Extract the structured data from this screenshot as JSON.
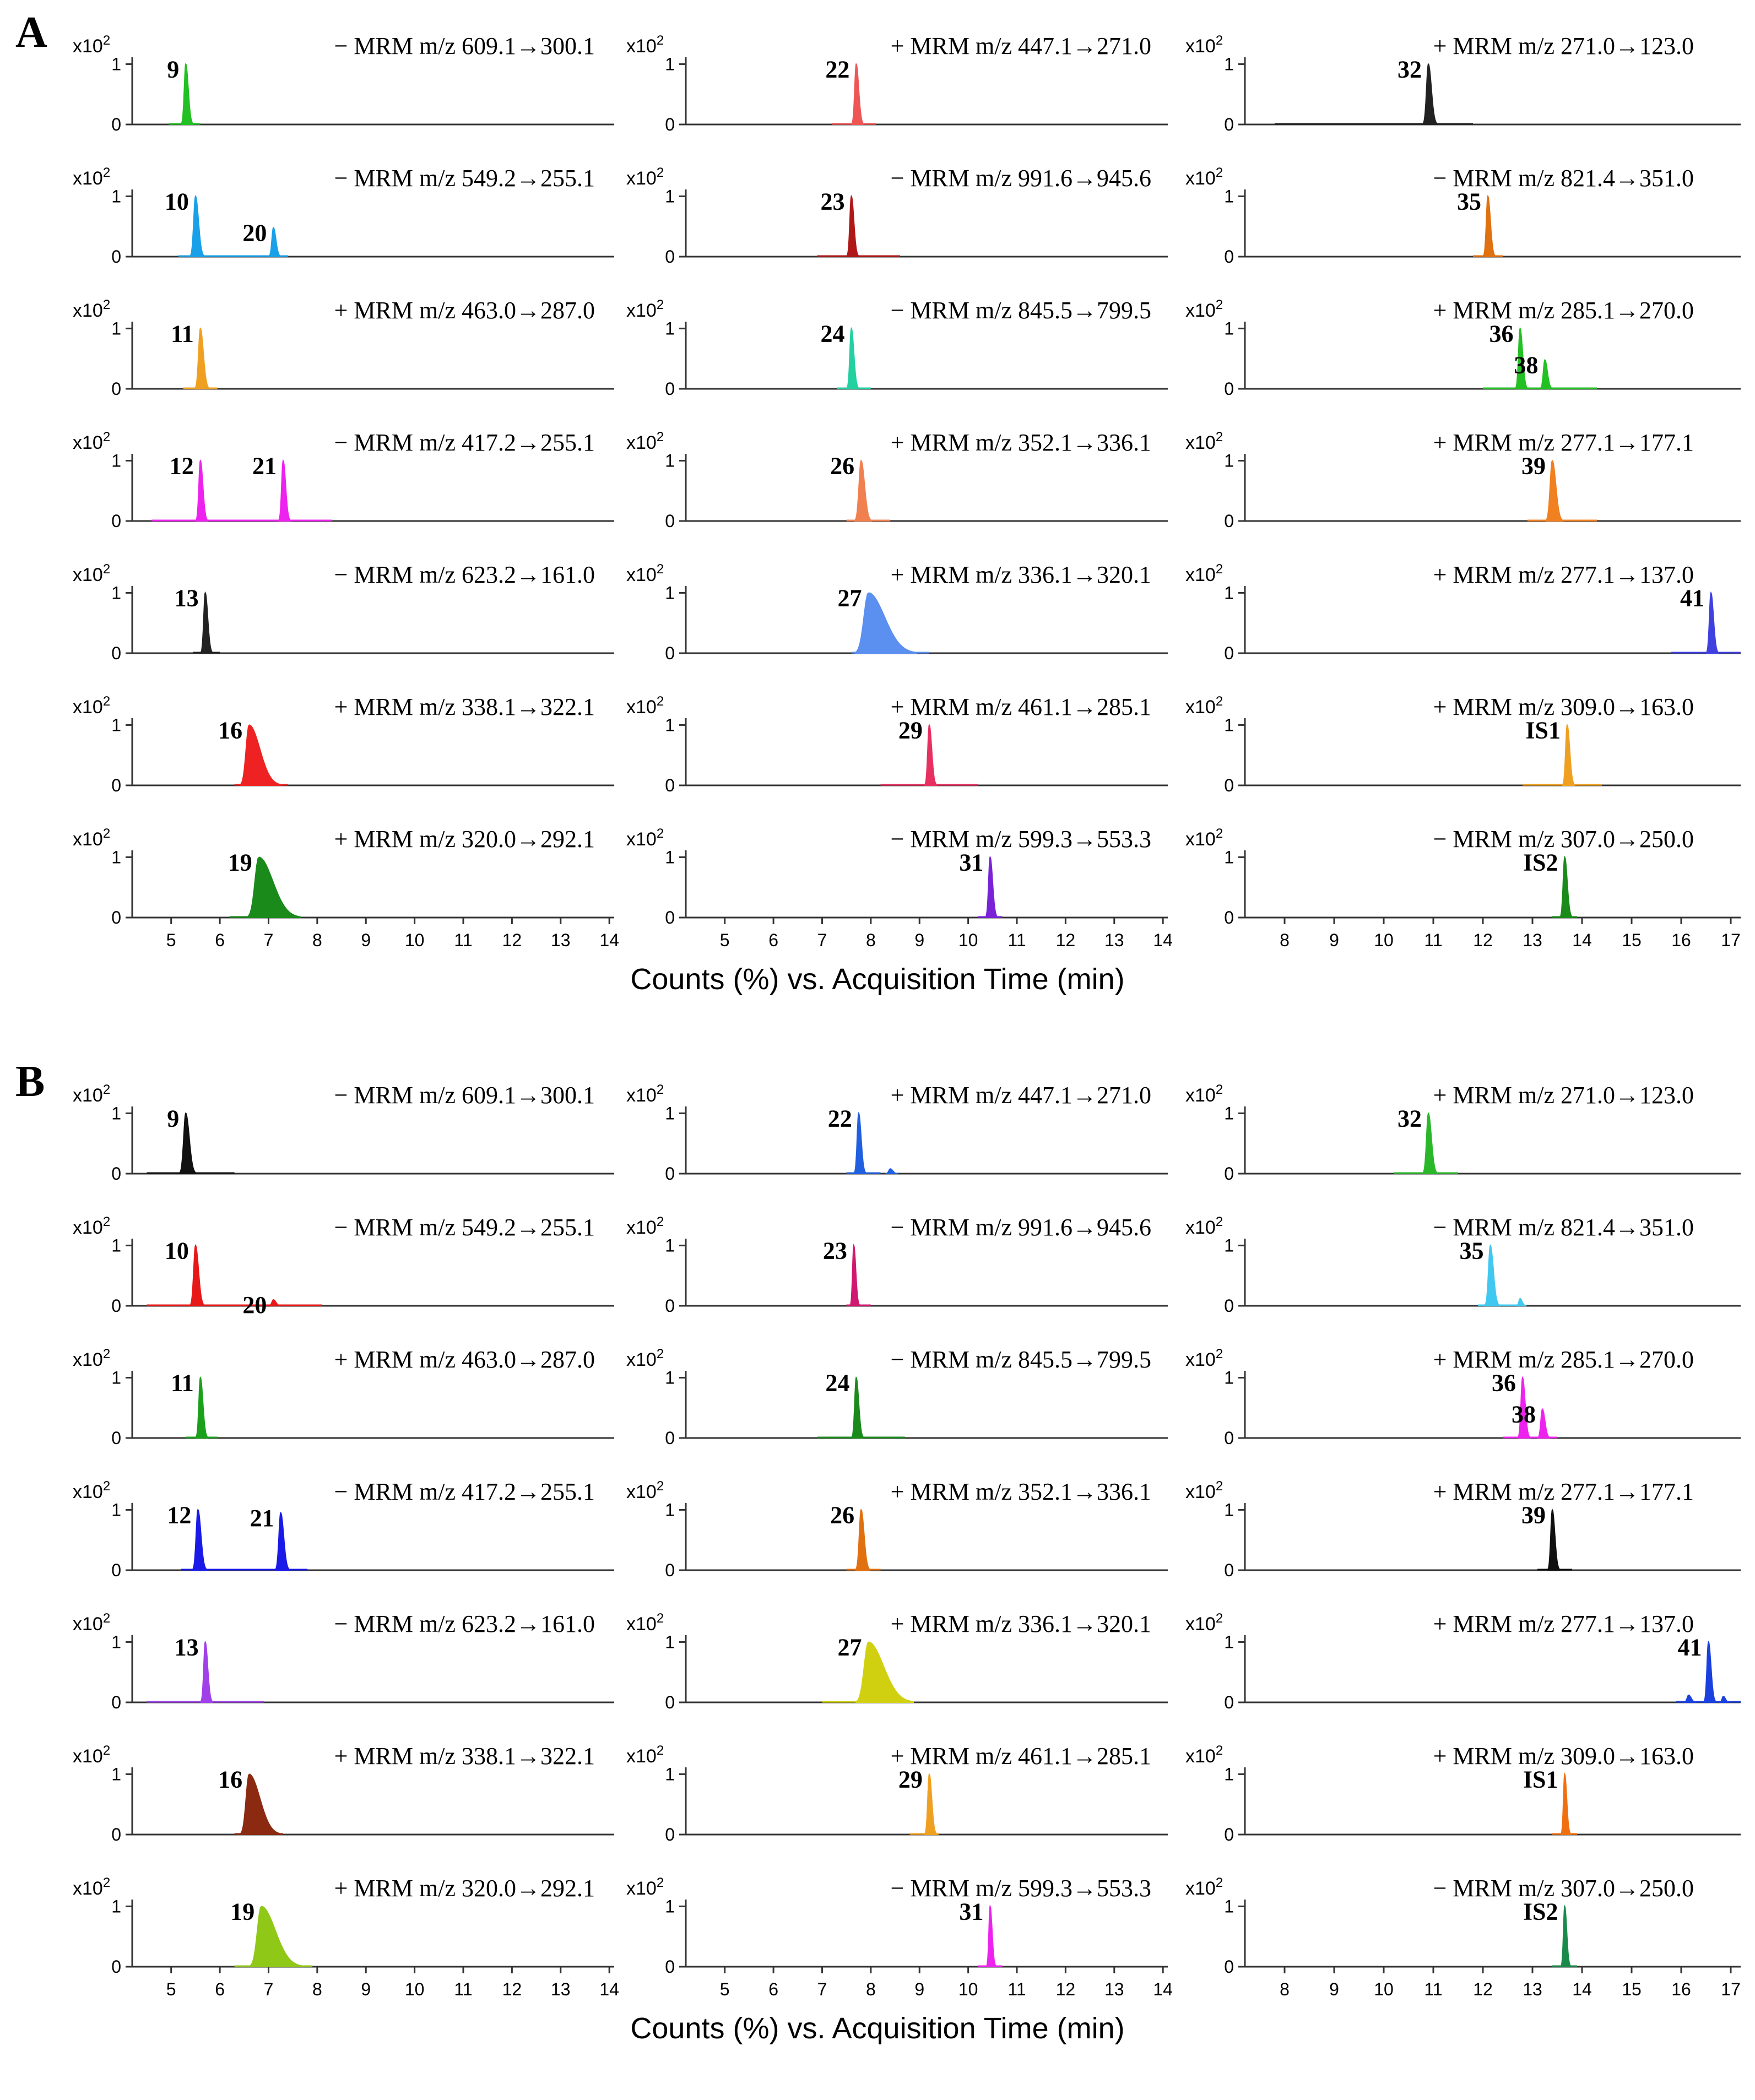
{
  "chart_data": [
    {
      "type": "line",
      "panel_label": "A",
      "xlabel": "Counts (%) vs. Acquisition Time (min)",
      "y_scale_label": "x10",
      "y_scale_exp": "2",
      "y_ticks": [
        0,
        1
      ],
      "ylim": [
        0,
        1.15
      ],
      "columns": [
        {
          "xlim": [
            4.2,
            14.1
          ],
          "x_ticks": [
            5,
            6,
            7,
            8,
            9,
            10,
            11,
            12,
            13,
            14
          ]
        },
        {
          "xlim": [
            4.2,
            14.1
          ],
          "x_ticks": [
            5,
            6,
            7,
            8,
            9,
            10,
            11,
            12,
            13,
            14
          ]
        },
        {
          "xlim": [
            7.2,
            17.2
          ],
          "x_ticks": [
            8,
            9,
            10,
            11,
            12,
            13,
            14,
            15,
            16,
            17
          ]
        }
      ],
      "traces": [
        {
          "col": 0,
          "row": 0,
          "title": "− MRM m/z 609.1→300.1",
          "color": "#22c022",
          "base": [
            4.95,
            5.6
          ],
          "peaks": [
            {
              "label": "9",
              "x": 5.3,
              "h": 1.0,
              "w": 0.05
            }
          ]
        },
        {
          "col": 0,
          "row": 1,
          "title": "− MRM m/z 549.2→255.1",
          "color": "#1aa0e8",
          "base": [
            5.15,
            7.4
          ],
          "peaks": [
            {
              "label": "10",
              "x": 5.5,
              "h": 1.0,
              "w": 0.06
            },
            {
              "label": "20",
              "x": 7.1,
              "h": 0.48,
              "w": 0.05
            }
          ]
        },
        {
          "col": 0,
          "row": 2,
          "title": "+ MRM m/z 463.0→287.0",
          "color": "#f0a020",
          "base": [
            5.25,
            5.95
          ],
          "peaks": [
            {
              "label": "11",
              "x": 5.6,
              "h": 1.0,
              "w": 0.06
            }
          ]
        },
        {
          "col": 0,
          "row": 3,
          "title": "− MRM m/z 417.2→255.1",
          "color": "#ee22ee",
          "base": [
            4.6,
            8.3
          ],
          "peaks": [
            {
              "label": "12",
              "x": 5.6,
              "h": 1.0,
              "w": 0.05
            },
            {
              "label": "21",
              "x": 7.3,
              "h": 1.0,
              "w": 0.05
            }
          ]
        },
        {
          "col": 0,
          "row": 4,
          "title": "− MRM m/z 623.2→161.0",
          "color": "#222222",
          "base": [
            5.45,
            6.0
          ],
          "peaks": [
            {
              "label": "13",
              "x": 5.7,
              "h": 1.0,
              "w": 0.05
            }
          ]
        },
        {
          "col": 0,
          "row": 5,
          "title": "+ MRM m/z 338.1→322.1",
          "color": "#ee2222",
          "base": [
            6.3,
            7.4
          ],
          "peaks": [
            {
              "label": "16",
              "x": 6.6,
              "h": 1.0,
              "w": 0.1
            }
          ]
        },
        {
          "col": 0,
          "row": 6,
          "title": "+ MRM m/z 320.0→292.1",
          "color": "#1a8a1a",
          "base": [
            6.2,
            7.6
          ],
          "peaks": [
            {
              "label": "19",
              "x": 6.8,
              "h": 1.0,
              "w": 0.13
            }
          ]
        },
        {
          "col": 1,
          "row": 0,
          "title": "+ MRM m/z 447.1→271.0",
          "color": "#ee5555",
          "base": [
            7.2,
            8.1
          ],
          "peaks": [
            {
              "label": "22",
              "x": 7.7,
              "h": 1.0,
              "w": 0.05
            }
          ]
        },
        {
          "col": 1,
          "row": 1,
          "title": "− MRM m/z 991.6→945.6",
          "color": "#b01818",
          "base": [
            6.9,
            8.6
          ],
          "peaks": [
            {
              "label": "23",
              "x": 7.6,
              "h": 1.0,
              "w": 0.05
            }
          ]
        },
        {
          "col": 1,
          "row": 2,
          "title": "− MRM m/z 845.5→799.5",
          "color": "#22d0a0",
          "base": [
            7.3,
            8.0
          ],
          "peaks": [
            {
              "label": "24",
              "x": 7.6,
              "h": 1.0,
              "w": 0.05
            }
          ]
        },
        {
          "col": 1,
          "row": 3,
          "title": "+ MRM m/z 352.1→336.1",
          "color": "#f08050",
          "base": [
            7.5,
            8.4
          ],
          "peaks": [
            {
              "label": "26",
              "x": 7.8,
              "h": 1.0,
              "w": 0.07
            }
          ]
        },
        {
          "col": 1,
          "row": 4,
          "title": "+ MRM m/z 336.1→320.1",
          "color": "#5b8ff0",
          "base": [
            7.6,
            9.2
          ],
          "peaks": [
            {
              "label": "27",
              "x": 7.95,
              "h": 1.0,
              "w": 0.15
            }
          ]
        },
        {
          "col": 1,
          "row": 5,
          "title": "+ MRM m/z 461.1→285.1",
          "color": "#e83060",
          "base": [
            8.2,
            10.2
          ],
          "peaks": [
            {
              "label": "29",
              "x": 9.2,
              "h": 1.0,
              "w": 0.05
            }
          ]
        },
        {
          "col": 1,
          "row": 6,
          "title": "− MRM m/z 599.3→553.3",
          "color": "#7a22d8",
          "base": [
            10.2,
            10.7
          ],
          "peaks": [
            {
              "label": "31",
              "x": 10.45,
              "h": 1.0,
              "w": 0.05
            }
          ]
        },
        {
          "col": 2,
          "row": 0,
          "title": "+ MRM m/z 271.0→123.0",
          "color": "#222222",
          "base": [
            7.8,
            11.8
          ],
          "peaks": [
            {
              "label": "32",
              "x": 10.9,
              "h": 1.0,
              "w": 0.06
            }
          ]
        },
        {
          "col": 2,
          "row": 1,
          "title": "− MRM m/z 821.4→351.0",
          "color": "#e07010",
          "base": [
            11.8,
            12.4
          ],
          "peaks": [
            {
              "label": "35",
              "x": 12.1,
              "h": 1.0,
              "w": 0.05
            }
          ]
        },
        {
          "col": 2,
          "row": 2,
          "title": "+ MRM m/z 285.1→270.0",
          "color": "#22c022",
          "base": [
            12.0,
            14.3
          ],
          "peaks": [
            {
              "label": "36",
              "x": 12.75,
              "h": 1.0,
              "w": 0.05
            },
            {
              "label": "38",
              "x": 13.25,
              "h": 0.48,
              "w": 0.05
            }
          ]
        },
        {
          "col": 2,
          "row": 3,
          "title": "+ MRM m/z 277.1→177.1",
          "color": "#f08020",
          "base": [
            12.9,
            14.3
          ],
          "peaks": [
            {
              "label": "39",
              "x": 13.4,
              "h": 1.0,
              "w": 0.07
            }
          ]
        },
        {
          "col": 2,
          "row": 4,
          "title": "+ MRM m/z 277.1→137.0",
          "color": "#4040e0",
          "base": [
            15.8,
            17.2
          ],
          "peaks": [
            {
              "label": "41",
              "x": 16.6,
              "h": 1.0,
              "w": 0.05
            }
          ]
        },
        {
          "col": 2,
          "row": 5,
          "title": "+ MRM m/z 309.0→163.0",
          "color": "#f0a020",
          "base": [
            12.8,
            14.4
          ],
          "peaks": [
            {
              "label": "IS1",
              "x": 13.7,
              "h": 1.0,
              "w": 0.05
            }
          ]
        },
        {
          "col": 2,
          "row": 6,
          "title": "− MRM m/z 307.0→250.0",
          "color": "#1a8a1a",
          "base": [
            13.4,
            13.9
          ],
          "peaks": [
            {
              "label": "IS2",
              "x": 13.65,
              "h": 1.0,
              "w": 0.05
            }
          ]
        }
      ]
    },
    {
      "type": "line",
      "panel_label": "B",
      "xlabel": "Counts (%) vs. Acquisition Time (min)",
      "y_scale_label": "x10",
      "y_scale_exp": "2",
      "y_ticks": [
        0,
        1
      ],
      "ylim": [
        0,
        1.15
      ],
      "columns": [
        {
          "xlim": [
            4.2,
            14.1
          ],
          "x_ticks": [
            5,
            6,
            7,
            8,
            9,
            10,
            11,
            12,
            13,
            14
          ]
        },
        {
          "xlim": [
            4.2,
            14.1
          ],
          "x_ticks": [
            5,
            6,
            7,
            8,
            9,
            10,
            11,
            12,
            13,
            14
          ]
        },
        {
          "xlim": [
            7.2,
            17.2
          ],
          "x_ticks": [
            8,
            9,
            10,
            11,
            12,
            13,
            14,
            15,
            16,
            17
          ]
        }
      ],
      "traces": [
        {
          "col": 0,
          "row": 0,
          "title": "− MRM m/z 609.1→300.1",
          "color": "#111111",
          "base": [
            4.5,
            6.3
          ],
          "peaks": [
            {
              "label": "9",
              "x": 5.3,
              "h": 1.0,
              "w": 0.07
            }
          ]
        },
        {
          "col": 0,
          "row": 1,
          "title": "− MRM m/z 549.2→255.1",
          "color": "#e81818",
          "base": [
            4.5,
            8.1
          ],
          "peaks": [
            {
              "label": "10",
              "x": 5.5,
              "h": 1.0,
              "w": 0.06
            },
            {
              "label": "20",
              "x": 7.1,
              "h": 0.1,
              "w": 0.05
            }
          ]
        },
        {
          "col": 0,
          "row": 2,
          "title": "+ MRM m/z 463.0→287.0",
          "color": "#1aa01a",
          "base": [
            5.3,
            5.95
          ],
          "peaks": [
            {
              "label": "11",
              "x": 5.6,
              "h": 1.0,
              "w": 0.05
            }
          ]
        },
        {
          "col": 0,
          "row": 3,
          "title": "− MRM m/z 417.2→255.1",
          "color": "#1a1ae8",
          "base": [
            5.2,
            7.8
          ],
          "peaks": [
            {
              "label": "12",
              "x": 5.55,
              "h": 1.0,
              "w": 0.06
            },
            {
              "label": "21",
              "x": 7.25,
              "h": 0.95,
              "w": 0.06
            }
          ]
        },
        {
          "col": 0,
          "row": 4,
          "title": "− MRM m/z 623.2→161.0",
          "color": "#a040e8",
          "base": [
            4.5,
            6.9
          ],
          "peaks": [
            {
              "label": "13",
              "x": 5.7,
              "h": 1.0,
              "w": 0.05
            }
          ]
        },
        {
          "col": 0,
          "row": 5,
          "title": "+ MRM m/z 338.1→322.1",
          "color": "#8b2a10",
          "base": [
            6.3,
            7.3
          ],
          "peaks": [
            {
              "label": "16",
              "x": 6.6,
              "h": 1.0,
              "w": 0.1
            }
          ]
        },
        {
          "col": 0,
          "row": 6,
          "title": "+ MRM m/z 320.0→292.1",
          "color": "#90c818",
          "base": [
            6.3,
            7.9
          ],
          "peaks": [
            {
              "label": "19",
              "x": 6.85,
              "h": 1.0,
              "w": 0.13
            }
          ]
        },
        {
          "col": 1,
          "row": 0,
          "title": "+ MRM m/z 447.1→271.0",
          "color": "#2060e0",
          "base": [
            7.5,
            8.2
          ],
          "peaks": [
            {
              "label": "22",
              "x": 7.75,
              "h": 1.0,
              "w": 0.05
            },
            {
              "label": "",
              "x": 8.4,
              "h": 0.08,
              "w": 0.05
            }
          ]
        },
        {
          "col": 1,
          "row": 1,
          "title": "− MRM m/z 991.6→945.6",
          "color": "#d01870",
          "base": [
            7.5,
            8.0
          ],
          "peaks": [
            {
              "label": "23",
              "x": 7.65,
              "h": 1.0,
              "w": 0.04
            }
          ]
        },
        {
          "col": 1,
          "row": 2,
          "title": "− MRM m/z 845.5→799.5",
          "color": "#1a8a1a",
          "base": [
            6.9,
            8.7
          ],
          "peaks": [
            {
              "label": "24",
              "x": 7.7,
              "h": 1.0,
              "w": 0.05
            }
          ]
        },
        {
          "col": 1,
          "row": 3,
          "title": "+ MRM m/z 352.1→336.1",
          "color": "#e07010",
          "base": [
            7.5,
            8.2
          ],
          "peaks": [
            {
              "label": "26",
              "x": 7.8,
              "h": 1.0,
              "w": 0.06
            }
          ]
        },
        {
          "col": 1,
          "row": 4,
          "title": "+ MRM m/z 336.1→320.1",
          "color": "#d0d010",
          "base": [
            7.0,
            8.7
          ],
          "peaks": [
            {
              "label": "27",
              "x": 7.95,
              "h": 1.0,
              "w": 0.14
            }
          ]
        },
        {
          "col": 1,
          "row": 5,
          "title": "+ MRM m/z 461.1→285.1",
          "color": "#f0a020",
          "base": [
            8.8,
            9.4
          ],
          "peaks": [
            {
              "label": "29",
              "x": 9.2,
              "h": 1.0,
              "w": 0.05
            }
          ]
        },
        {
          "col": 1,
          "row": 6,
          "title": "− MRM m/z 599.3→553.3",
          "color": "#ee22ee",
          "base": [
            10.2,
            10.7
          ],
          "peaks": [
            {
              "label": "31",
              "x": 10.45,
              "h": 1.0,
              "w": 0.04
            }
          ]
        },
        {
          "col": 2,
          "row": 0,
          "title": "+ MRM m/z 271.0→123.0",
          "color": "#2ab82a",
          "base": [
            10.2,
            11.5
          ],
          "peaks": [
            {
              "label": "32",
              "x": 10.9,
              "h": 1.0,
              "w": 0.06
            }
          ]
        },
        {
          "col": 2,
          "row": 1,
          "title": "− MRM m/z 821.4→351.0",
          "color": "#40c8f0",
          "base": [
            11.9,
            12.8
          ],
          "peaks": [
            {
              "label": "35",
              "x": 12.15,
              "h": 1.0,
              "w": 0.06
            },
            {
              "label": "",
              "x": 12.75,
              "h": 0.12,
              "w": 0.04
            }
          ]
        },
        {
          "col": 2,
          "row": 2,
          "title": "+ MRM m/z 285.1→270.0",
          "color": "#ee22ee",
          "base": [
            12.4,
            13.5
          ],
          "peaks": [
            {
              "label": "36",
              "x": 12.8,
              "h": 1.0,
              "w": 0.05
            },
            {
              "label": "38",
              "x": 13.2,
              "h": 0.48,
              "w": 0.05
            }
          ]
        },
        {
          "col": 2,
          "row": 3,
          "title": "+ MRM m/z 277.1→177.1",
          "color": "#111111",
          "base": [
            13.1,
            13.8
          ],
          "peaks": [
            {
              "label": "39",
              "x": 13.4,
              "h": 1.0,
              "w": 0.05
            }
          ]
        },
        {
          "col": 2,
          "row": 4,
          "title": "+ MRM m/z 277.1→137.0",
          "color": "#1a40e0",
          "base": [
            15.9,
            17.2
          ],
          "peaks": [
            {
              "label": "41",
              "x": 16.55,
              "h": 1.0,
              "w": 0.05
            },
            {
              "label": "",
              "x": 16.15,
              "h": 0.12,
              "w": 0.05
            },
            {
              "label": "",
              "x": 16.85,
              "h": 0.1,
              "w": 0.04
            }
          ]
        },
        {
          "col": 2,
          "row": 5,
          "title": "+ MRM m/z 309.0→163.0",
          "color": "#f07010",
          "base": [
            13.4,
            13.9
          ],
          "peaks": [
            {
              "label": "IS1",
              "x": 13.65,
              "h": 1.0,
              "w": 0.04
            }
          ]
        },
        {
          "col": 2,
          "row": 6,
          "title": "− MRM m/z 307.0→250.0",
          "color": "#1a8a4a",
          "base": [
            13.4,
            13.9
          ],
          "peaks": [
            {
              "label": "IS2",
              "x": 13.65,
              "h": 1.0,
              "w": 0.04
            }
          ]
        }
      ]
    }
  ]
}
